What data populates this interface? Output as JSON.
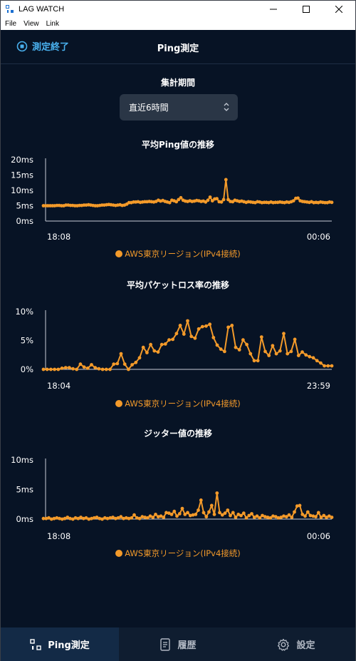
{
  "window": {
    "title": "LAG WATCH"
  },
  "menu": [
    "File",
    "View",
    "Link"
  ],
  "header": {
    "stop_label": "測定終了",
    "title": "Ping測定"
  },
  "period": {
    "label": "集計期間",
    "selected": "直近6時間"
  },
  "charts": [
    {
      "title": "平均Ping値の推移",
      "legend": "AWS東京リージョン(IPv4接続)"
    },
    {
      "title": "平均パケットロス率の推移",
      "legend": "AWS東京リージョン(IPv4接続)"
    },
    {
      "title": "ジッター値の推移",
      "legend": "AWS東京リージョン(IPv4接続)"
    }
  ],
  "nav": {
    "ping": "Ping測定",
    "history": "履歴",
    "settings": "設定"
  },
  "colors": {
    "accent": "#f39a2a",
    "link": "#49b0ee",
    "background": "#071325"
  },
  "chart_data": [
    {
      "type": "line",
      "title": "平均Ping値の推移",
      "yticks": [
        "20ms",
        "15ms",
        "10ms",
        "5ms",
        "0ms"
      ],
      "ylim": [
        0,
        20
      ],
      "x_start": "18:08",
      "x_end": "00:06",
      "series": [
        {
          "name": "AWS東京リージョン(IPv4接続)",
          "values": [
            5,
            5,
            5,
            5,
            5,
            5,
            5.1,
            5.1,
            5,
            5,
            5.2,
            5.2,
            5.1,
            5.1,
            5,
            5,
            5.1,
            5.1,
            5.2,
            5.2,
            5.3,
            5.2,
            5.1,
            5,
            5,
            5.1,
            5.2,
            5.2,
            5.3,
            5.4,
            5.3,
            5.2,
            5.1,
            5.2,
            5.3,
            5.1,
            5.2,
            5.5,
            6,
            6,
            6.2,
            6.2,
            6.3,
            6.1,
            6.2,
            6.3,
            6.3,
            6.4,
            6.3,
            6.2,
            6.4,
            6.8,
            6.5,
            6.7,
            6.4,
            6.2,
            6,
            6.8,
            6.6,
            6.3,
            7,
            7.6,
            6.8,
            6.5,
            6.4,
            6.6,
            6.4,
            6.5,
            6.7,
            6.6,
            6.4,
            6.5,
            6.2,
            6.8,
            7.8,
            6.6,
            7.2,
            7.3,
            6.3,
            6.2,
            7,
            13.5,
            7,
            6.4,
            6.3,
            6.8,
            6.6,
            6.4,
            6.5,
            6.3,
            6.1,
            6.3,
            6.2,
            6.1,
            6,
            6.3,
            6.2,
            6,
            6.1,
            6.1,
            6,
            6.2,
            6,
            6.1,
            6.1,
            6.2,
            6.1,
            6,
            6.2,
            6.1,
            6.3,
            6.6,
            7.4,
            7.5,
            6.6,
            6.4,
            6.3,
            6.2,
            6.1,
            6.3,
            6,
            6.1,
            6,
            6.2,
            6.1,
            6,
            6,
            6.2,
            6.1
          ]
        }
      ]
    },
    {
      "type": "line",
      "title": "平均パケットロス率の推移",
      "yticks": [
        "10%",
        "5%",
        "0%"
      ],
      "ylim": [
        0,
        10
      ],
      "x_start": "18:04",
      "x_end": "23:59",
      "series": [
        {
          "name": "AWS東京リージョン(IPv4接続)",
          "values": [
            0,
            0,
            0,
            0,
            0,
            0.2,
            0.3,
            0.3,
            0.1,
            0,
            0.9,
            0.4,
            0.2,
            0.8,
            0.3,
            0.1,
            0,
            0,
            0,
            0.9,
            1,
            2.7,
            0.9,
            0,
            0.8,
            1.2,
            2,
            3.8,
            2.9,
            4.3,
            3.2,
            3,
            4.3,
            4.4,
            5.1,
            5.2,
            6.2,
            7.6,
            6.1,
            8.4,
            5.7,
            5.4,
            7,
            7.4,
            7.5,
            7.8,
            5.5,
            4.2,
            3.5,
            3.1,
            7.3,
            7.6,
            3.8,
            3.4,
            5.1,
            4.3,
            2.7,
            1.5,
            1.5,
            5.6,
            3.1,
            2.4,
            4.1,
            2.7,
            3.2,
            6.2,
            2.7,
            3.1,
            5.2,
            2.4,
            3,
            2.5,
            2.2,
            2,
            1.5,
            1.1,
            0.6,
            0.6,
            0.6
          ]
        }
      ]
    },
    {
      "type": "line",
      "title": "ジッター値の推移",
      "yticks": [
        "10ms",
        "5ms",
        "0ms"
      ],
      "ylim": [
        0,
        10
      ],
      "x_start": "18:08",
      "x_end": "00:06",
      "series": [
        {
          "name": "AWS東京リージョン(IPv4接続)",
          "values": [
            0.1,
            0.1,
            0.2,
            0,
            0.1,
            0.2,
            0.1,
            0,
            0.1,
            0.3,
            0.1,
            0,
            0.2,
            0.1,
            0.3,
            0.1,
            0.2,
            0,
            0.1,
            0.2,
            0.3,
            0.1,
            0,
            0.2,
            0.1,
            0.2,
            0.3,
            0.1,
            0.2,
            0.4,
            0.1,
            0.2,
            0.1,
            0.2,
            0.7,
            0.2,
            0.1,
            0.4,
            0.3,
            0.2,
            0.5,
            0.3,
            0.8,
            0.4,
            0.5,
            0.3,
            1.1,
            1,
            0.8,
            1.3,
            0.5,
            0.9,
            1.8,
            0.8,
            1.1,
            0.6,
            0.7,
            0.8,
            1.5,
            3.2,
            1.1,
            0.4,
            1.2,
            2.3,
            0.8,
            4.4,
            1.1,
            0.7,
            1,
            1.5,
            0.6,
            1.1,
            0.3,
            0.8,
            0.6,
            1,
            0.2,
            0.6,
            0.9,
            0.3,
            0.5,
            0.2,
            0.6,
            0.4,
            0.3,
            0.2,
            0.5,
            0.4,
            0.2,
            0.3,
            0.5,
            0.4,
            0.7,
            0.3,
            1.2,
            2.2,
            2.3,
            0.8,
            0.5,
            1.2,
            0.6,
            0.5,
            0.4,
            1.1,
            0.3,
            0.6,
            0.3,
            0.5,
            0.3
          ]
        }
      ]
    }
  ]
}
